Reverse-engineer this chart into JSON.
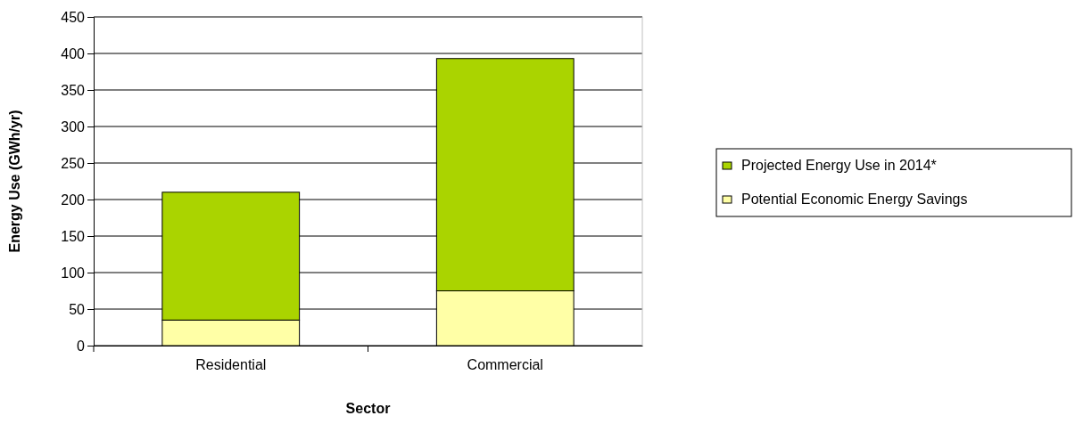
{
  "chart_data": {
    "type": "bar",
    "stacked": true,
    "xlabel": "Sector",
    "ylabel": "Energy Use (GWh/yr)",
    "categories": [
      "Residential",
      "Commercial"
    ],
    "series": [
      {
        "name": "Potential Economic Energy Savings",
        "color": "#ffffa6",
        "values": [
          35,
          75
        ]
      },
      {
        "name": "Projected Energy Use in 2014*",
        "color": "#aad400",
        "values": [
          175,
          318
        ]
      }
    ],
    "ylim": [
      0,
      450
    ],
    "yticks": [
      0,
      50,
      100,
      150,
      200,
      250,
      300,
      350,
      400,
      450
    ],
    "grid": "y",
    "legend": "right"
  }
}
